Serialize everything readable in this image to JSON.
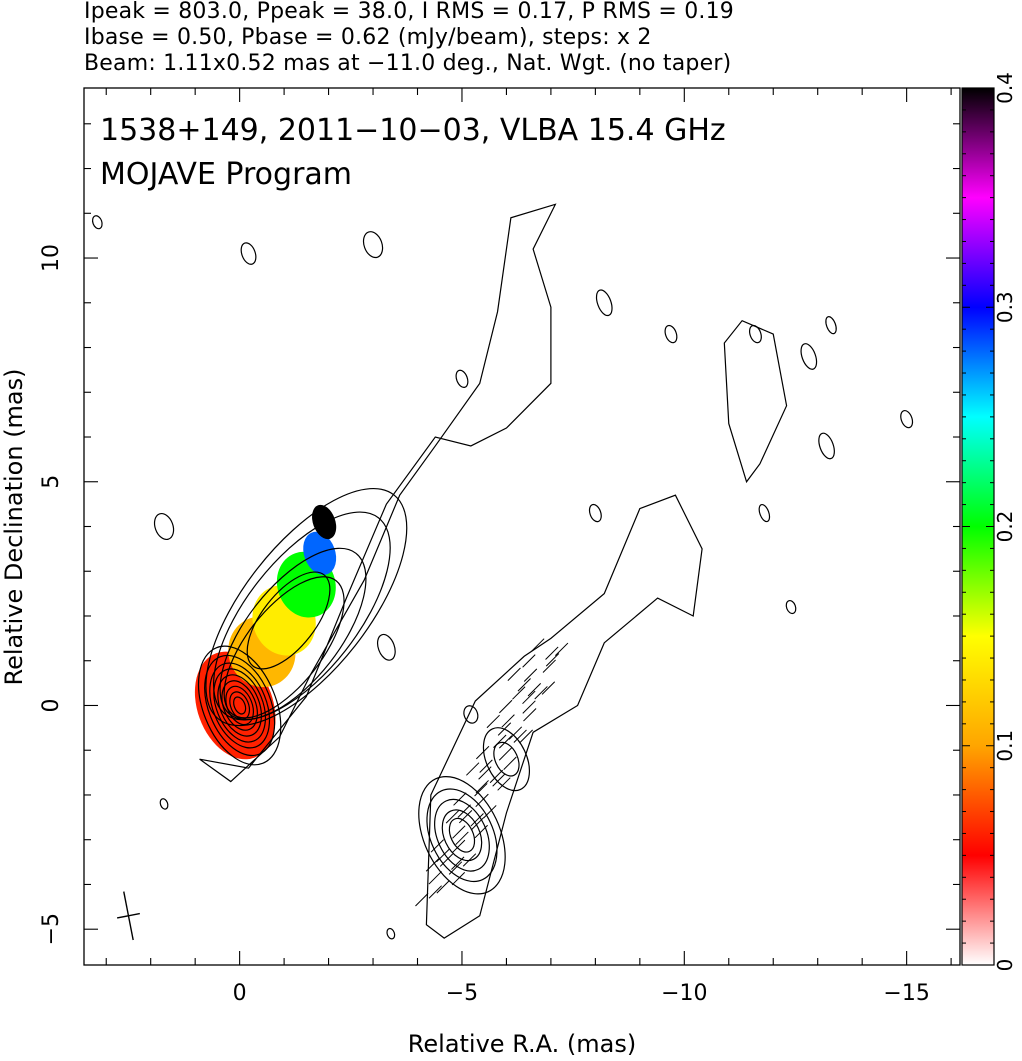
{
  "header": {
    "line1": "Ipeak = 803.0, Ppeak = 38.0, I RMS = 0.17, P RMS = 0.19",
    "line2": "Ibase = 0.50, Pbase = 0.62 (mJy/beam), steps: x 2",
    "line3": "Beam: 1.11x0.52 mas at −11.0 deg., Nat. Wgt. (no taper)"
  },
  "chart_data": {
    "type": "heatmap",
    "title": "1538+149, 2011−10−03, VLBA 15.4 GHz",
    "subtitle": "MOJAVE Program",
    "xlabel": "Relative R.A. (mas)",
    "ylabel": "Relative Declination (mas)",
    "xlim": [
      3.5,
      -16.2
    ],
    "ylim": [
      -5.8,
      13.8
    ],
    "x_ticks": [
      0,
      -5,
      -10,
      -15
    ],
    "x_tick_labels": [
      "0",
      "−5",
      "−10",
      "−15"
    ],
    "y_ticks": [
      -5,
      0,
      5,
      10
    ],
    "y_tick_labels": [
      "−5",
      "0",
      "5",
      "10"
    ],
    "colorbar": {
      "min": 0,
      "max": 0.4,
      "ticks": [
        0,
        0.1,
        0.2,
        0.3,
        0.4
      ],
      "tick_labels": [
        "0",
        "0.1",
        "0.2",
        "0.3",
        "0.4"
      ],
      "colormap": [
        "#ffffff",
        "#ff0000",
        "#ffa500",
        "#ffff00",
        "#00ff00",
        "#00ffff",
        "#0000ff",
        "#ff00ff",
        "#000000"
      ]
    },
    "panels": [
      {
        "name": "total-intensity-with-fractional-polarization",
        "x_offset": 0,
        "core": [
          0,
          0
        ],
        "contour_base_mJy": 0.5,
        "contour_step_factor": 2,
        "contour_count": 9,
        "jet_direction_deg": 36,
        "polarization_region": [
          {
            "x": 0.1,
            "y": 0.0,
            "value": 0.06
          },
          {
            "x": -0.5,
            "y": 1.2,
            "value": 0.11
          },
          {
            "x": -1.0,
            "y": 1.9,
            "value": 0.14
          },
          {
            "x": -1.5,
            "y": 2.7,
            "value": 0.2
          },
          {
            "x": -1.8,
            "y": 3.4,
            "value": 0.28
          },
          {
            "x": -1.9,
            "y": 4.1,
            "value": 0.4
          }
        ]
      },
      {
        "name": "polarized-intensity-with-evpa",
        "x_offset": -5.0,
        "core": [
          -5.0,
          -2.9
        ],
        "secondary_peak": [
          -6.0,
          -1.2
        ],
        "contour_base_mJy": 0.62,
        "contour_step_factor": 2
      }
    ],
    "beam": {
      "major_mas": 1.11,
      "minor_mas": 0.52,
      "pa_deg": -11.0,
      "position": [
        2.5,
        -4.7
      ]
    }
  },
  "colors": {
    "contour": "#000000",
    "axis": "#000000",
    "background": "#ffffff"
  }
}
